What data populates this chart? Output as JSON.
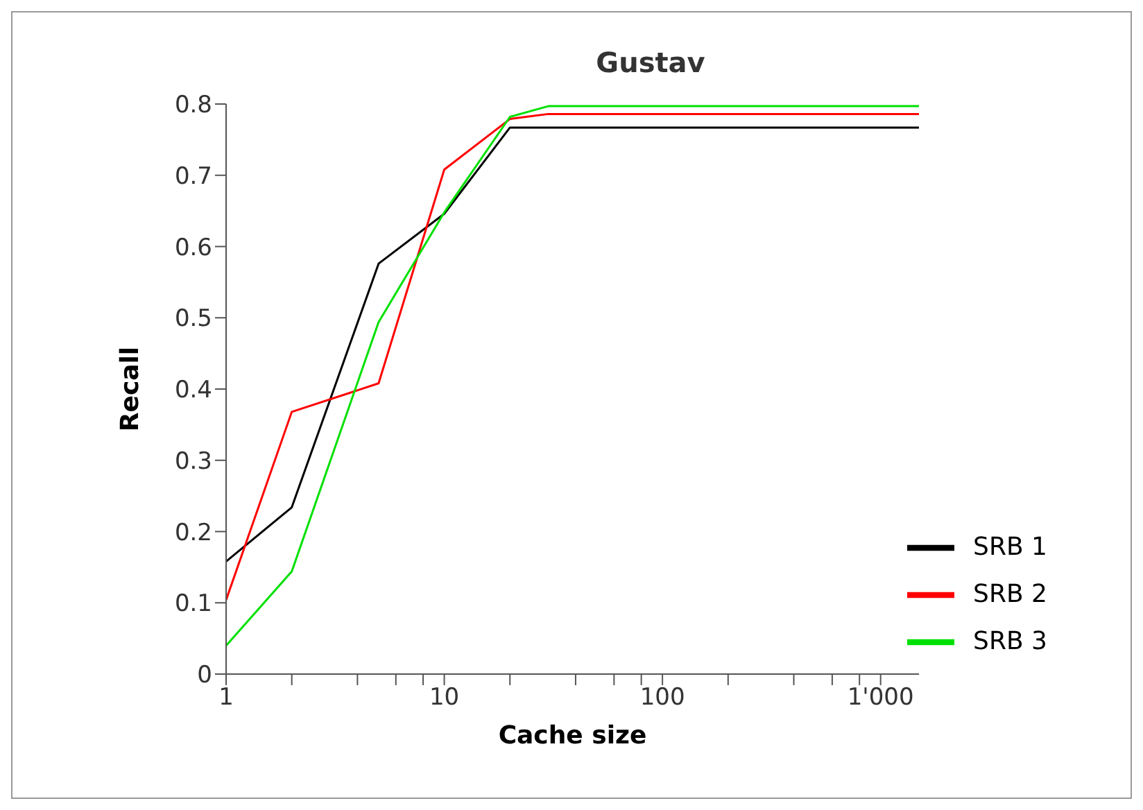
{
  "chart_data": {
    "type": "line",
    "title": "Gustav",
    "xlabel": "Cache size",
    "ylabel": "Recall",
    "x": [
      1,
      2,
      5,
      10,
      20,
      30,
      1500
    ],
    "series": [
      {
        "name": "SRB 1",
        "color": "#000000",
        "values": [
          0.158,
          0.234,
          0.576,
          0.646,
          0.767,
          0.767,
          0.767
        ]
      },
      {
        "name": "SRB 2",
        "color": "#ff0000",
        "values": [
          0.104,
          0.368,
          0.408,
          0.708,
          0.779,
          0.786,
          0.786
        ]
      },
      {
        "name": "SRB 3",
        "color": "#00e000",
        "values": [
          0.04,
          0.144,
          0.494,
          0.648,
          0.782,
          0.797,
          0.797
        ]
      }
    ],
    "log": "x",
    "xlim": [
      1,
      1500
    ],
    "xticks": [
      1,
      {
        "value": 2,
        "label": null
      },
      {
        "value": 4,
        "label": null
      },
      {
        "value": 6,
        "label": null
      },
      {
        "value": 8,
        "label": null
      },
      10,
      {
        "value": 20,
        "label": null
      },
      {
        "value": 40,
        "label": null
      },
      {
        "value": 60,
        "label": null
      },
      {
        "value": 80,
        "label": null
      },
      100,
      {
        "value": 200,
        "label": null
      },
      {
        "value": 400,
        "label": null
      },
      {
        "value": 600,
        "label": null
      },
      {
        "value": 800,
        "label": null
      },
      {
        "value": 1000,
        "label": "1'000"
      }
    ],
    "ylim": [
      0,
      0.8
    ],
    "yticks": [
      0,
      0.1,
      0.2,
      0.3,
      0.4,
      0.5,
      0.6,
      0.7,
      0.8
    ],
    "grid": false,
    "legend": "bottom right",
    "marker": "none",
    "line_style": "solid"
  }
}
